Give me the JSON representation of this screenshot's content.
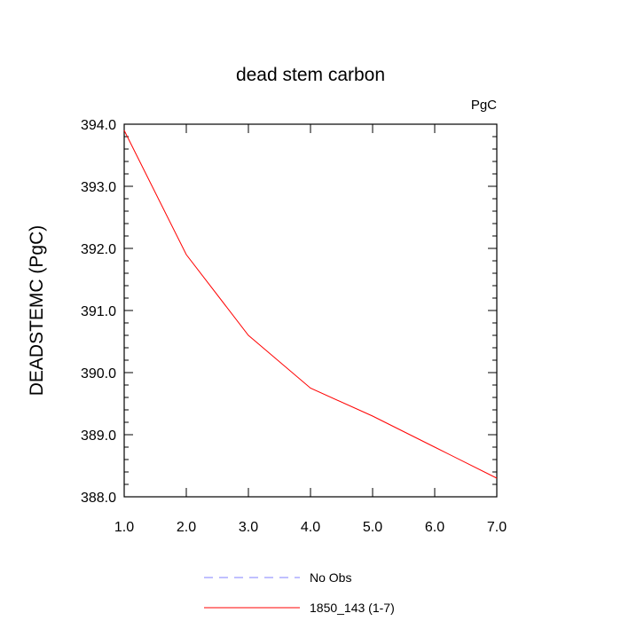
{
  "chart_data": {
    "type": "line",
    "title": "dead stem carbon",
    "units_label": "PgC",
    "xlabel": "",
    "ylabel": "DEADSTEMC  (PgC)",
    "xlim": [
      1.0,
      7.0
    ],
    "ylim": [
      388.0,
      394.0
    ],
    "x_ticks": [
      "1.0",
      "2.0",
      "3.0",
      "4.0",
      "5.0",
      "6.0",
      "7.0"
    ],
    "y_ticks": [
      "388.0",
      "389.0",
      "390.0",
      "391.0",
      "392.0",
      "393.0",
      "394.0"
    ],
    "grid": false,
    "legend_position": "bottom",
    "series": [
      {
        "name": "No Obs",
        "color": "#8080ff",
        "style": "dashed",
        "x": [],
        "y": []
      },
      {
        "name": "1850_143 (1-7)",
        "color": "#ff0000",
        "style": "solid",
        "x": [
          1,
          2,
          3,
          4,
          5,
          6,
          7
        ],
        "y": [
          393.9,
          391.9,
          390.6,
          389.75,
          389.3,
          388.8,
          388.3
        ]
      }
    ]
  }
}
